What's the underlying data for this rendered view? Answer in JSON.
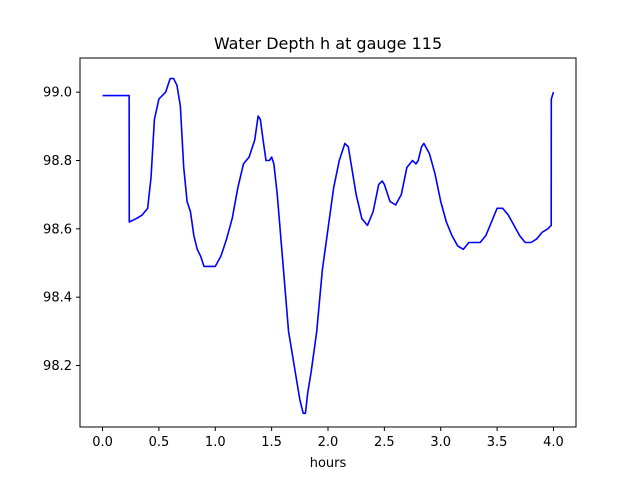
{
  "chart_data": {
    "type": "line",
    "title": "Water Depth h at gauge 115",
    "xlabel": "hours",
    "ylabel": "",
    "xlim": [
      -0.2,
      4.2
    ],
    "ylim": [
      98.02,
      99.1
    ],
    "xticks": [
      0.0,
      0.5,
      1.0,
      1.5,
      2.0,
      2.5,
      3.0,
      3.5,
      4.0
    ],
    "xtick_labels": [
      "0.0",
      "0.5",
      "1.0",
      "1.5",
      "2.0",
      "2.5",
      "3.0",
      "3.5",
      "4.0"
    ],
    "yticks": [
      98.2,
      98.4,
      98.6,
      98.8,
      99.0
    ],
    "ytick_labels": [
      "98.2",
      "98.4",
      "98.6",
      "98.8",
      "99.0"
    ],
    "grid": false,
    "series": [
      {
        "color": "#0000ff",
        "x": [
          0.0,
          0.1,
          0.2,
          0.236,
          0.237,
          0.3,
          0.35,
          0.4,
          0.43,
          0.46,
          0.5,
          0.53,
          0.56,
          0.6,
          0.63,
          0.66,
          0.69,
          0.72,
          0.75,
          0.78,
          0.81,
          0.84,
          0.87,
          0.9,
          0.93,
          0.96,
          1.0,
          1.05,
          1.1,
          1.15,
          1.2,
          1.25,
          1.3,
          1.35,
          1.38,
          1.4,
          1.42,
          1.45,
          1.48,
          1.5,
          1.52,
          1.55,
          1.6,
          1.65,
          1.7,
          1.75,
          1.78,
          1.8,
          1.82,
          1.85,
          1.9,
          1.95,
          2.0,
          2.05,
          2.1,
          2.15,
          2.18,
          2.2,
          2.25,
          2.3,
          2.35,
          2.4,
          2.45,
          2.48,
          2.5,
          2.55,
          2.6,
          2.65,
          2.7,
          2.75,
          2.78,
          2.8,
          2.83,
          2.85,
          2.9,
          2.95,
          3.0,
          3.05,
          3.1,
          3.15,
          3.2,
          3.25,
          3.3,
          3.35,
          3.4,
          3.45,
          3.5,
          3.55,
          3.6,
          3.65,
          3.7,
          3.75,
          3.8,
          3.85,
          3.9,
          3.95,
          3.98,
          3.981,
          4.0
        ],
        "y": [
          98.99,
          98.99,
          98.99,
          98.99,
          98.62,
          98.63,
          98.64,
          98.66,
          98.75,
          98.92,
          98.98,
          98.99,
          99.0,
          99.04,
          99.04,
          99.02,
          98.96,
          98.78,
          98.68,
          98.65,
          98.58,
          98.54,
          98.52,
          98.49,
          98.49,
          98.49,
          98.49,
          98.52,
          98.57,
          98.63,
          98.72,
          98.79,
          98.81,
          98.86,
          98.93,
          98.92,
          98.87,
          98.8,
          98.8,
          98.81,
          98.79,
          98.7,
          98.5,
          98.3,
          98.2,
          98.1,
          98.06,
          98.06,
          98.12,
          98.18,
          98.3,
          98.48,
          98.6,
          98.72,
          98.8,
          98.85,
          98.84,
          98.8,
          98.7,
          98.63,
          98.61,
          98.65,
          98.73,
          98.74,
          98.73,
          98.68,
          98.67,
          98.7,
          98.78,
          98.8,
          98.79,
          98.8,
          98.84,
          98.85,
          98.82,
          98.76,
          98.68,
          98.62,
          98.58,
          98.55,
          98.54,
          98.56,
          98.56,
          98.56,
          98.58,
          98.62,
          98.66,
          98.66,
          98.64,
          98.61,
          98.58,
          98.56,
          98.56,
          98.57,
          98.59,
          98.6,
          98.61,
          98.98,
          99.0
        ]
      }
    ]
  }
}
